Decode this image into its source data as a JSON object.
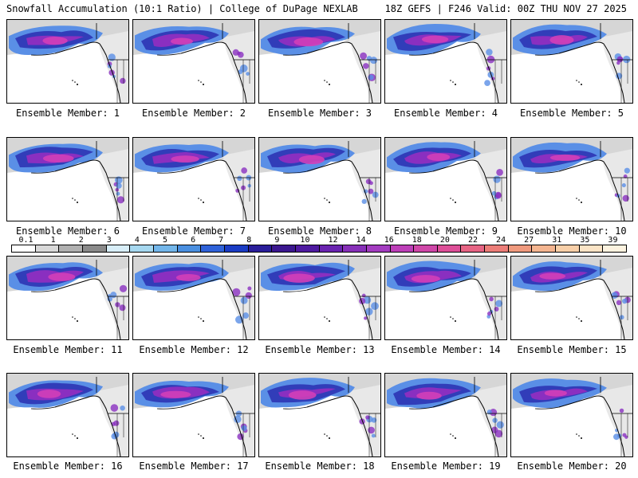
{
  "header": {
    "title": "Snowfall Accumulation (10:1 Ratio) | College of DuPage NEXLAB",
    "run_info": "18Z GEFS | F246 Valid: 00Z THU NOV 27 2025"
  },
  "members": [
    {
      "label": "Ensemble Member: 1"
    },
    {
      "label": "Ensemble Member: 2"
    },
    {
      "label": "Ensemble Member: 3"
    },
    {
      "label": "Ensemble Member: 4"
    },
    {
      "label": "Ensemble Member: 5"
    },
    {
      "label": "Ensemble Member: 6"
    },
    {
      "label": "Ensemble Member: 7"
    },
    {
      "label": "Ensemble Member: 8"
    },
    {
      "label": "Ensemble Member: 9"
    },
    {
      "label": "Ensemble Member: 10"
    },
    {
      "label": "Ensemble Member: 11"
    },
    {
      "label": "Ensemble Member: 12"
    },
    {
      "label": "Ensemble Member: 13"
    },
    {
      "label": "Ensemble Member: 14"
    },
    {
      "label": "Ensemble Member: 15"
    },
    {
      "label": "Ensemble Member: 16"
    },
    {
      "label": "Ensemble Member: 17"
    },
    {
      "label": "Ensemble Member: 18"
    },
    {
      "label": "Ensemble Member: 19"
    },
    {
      "label": "Ensemble Member: 20"
    }
  ],
  "colorbar": {
    "labels": [
      "0.1",
      "1",
      "2",
      "3",
      "4",
      "5",
      "6",
      "7",
      "8",
      "9",
      "10",
      "12",
      "14",
      "16",
      "18",
      "20",
      "22",
      "24",
      "27",
      "31",
      "35",
      "39"
    ],
    "colors": [
      "#ffffff",
      "#d9d9d9",
      "#b0b0b0",
      "#8a8a8a",
      "#d8eef8",
      "#a6d8f0",
      "#73b6ea",
      "#4a8fe0",
      "#2f62d9",
      "#1a3cc4",
      "#2a1e9a",
      "#3b178f",
      "#4e1aa0",
      "#6a24b0",
      "#8730b8",
      "#a33cc0",
      "#bd3fb8",
      "#cf47a8",
      "#dd4f98",
      "#e66484",
      "#ec7d78",
      "#f09a7e",
      "#f4b590",
      "#f8cfa8",
      "#fbe4c6",
      "#fdf3e0"
    ]
  },
  "map_colors": {
    "ocean": "#ffffff",
    "land_gray": "#b4b4b4",
    "snow_blue": "#5a8fe6",
    "snow_dark": "#2a2fb0",
    "snow_purple": "#8a2fc0",
    "snow_magenta": "#d23fb8",
    "border": "#000000"
  }
}
